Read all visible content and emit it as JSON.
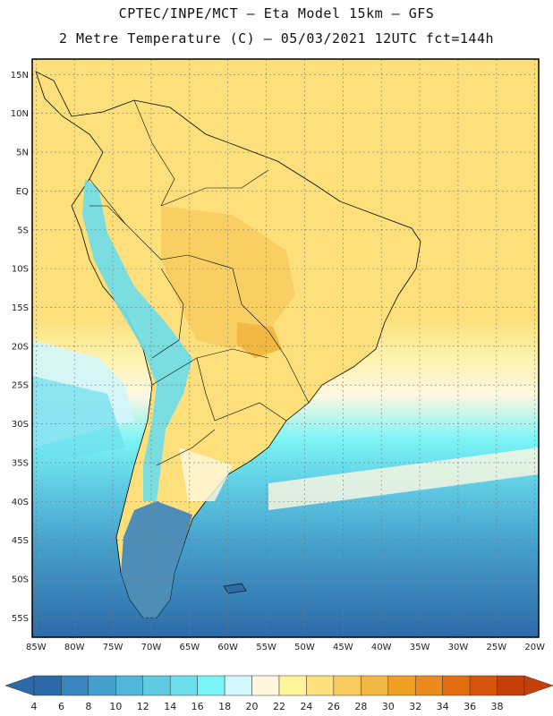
{
  "header": {
    "line1": "CPTEC/INPE/MCT –  Eta Model 15km – GFS",
    "line2": "2 Metre Temperature (C) – 05/03/2021 12UTC fct=144h"
  },
  "axes": {
    "lat_labels": [
      "15N",
      "10N",
      "5N",
      "EQ",
      "5S",
      "10S",
      "15S",
      "20S",
      "25S",
      "30S",
      "35S",
      "40S",
      "45S",
      "50S",
      "55S"
    ],
    "lat_values": [
      15,
      10,
      5,
      0,
      -5,
      -10,
      -15,
      -20,
      -25,
      -30,
      -35,
      -40,
      -45,
      -50,
      -55
    ],
    "lon_labels": [
      "85W",
      "80W",
      "75W",
      "70W",
      "65W",
      "60W",
      "55W",
      "50W",
      "45W",
      "40W",
      "35W",
      "30W",
      "25W",
      "20W"
    ],
    "lon_values": [
      -85,
      -80,
      -75,
      -70,
      -65,
      -60,
      -55,
      -50,
      -45,
      -40,
      -35,
      -30,
      -25,
      -20
    ],
    "lat_range": [
      -57.5,
      17.0
    ],
    "lon_range": [
      -85.5,
      -19.5
    ]
  },
  "colorbar": {
    "labels": [
      "4",
      "6",
      "8",
      "10",
      "12",
      "14",
      "16",
      "18",
      "20",
      "22",
      "24",
      "26",
      "28",
      "30",
      "32",
      "34",
      "36",
      "38"
    ],
    "colors": [
      "#2d6aa8",
      "#3a84bd",
      "#46a0cc",
      "#52b6d8",
      "#5fcbe3",
      "#6cdeec",
      "#7af4f6",
      "#d2f6fb",
      "#fff7e0",
      "#fef59a",
      "#fde07c",
      "#f8cb5e",
      "#f2b844",
      "#f0a024",
      "#ec8a1e",
      "#e36e12",
      "#d4560c",
      "#c44008"
    ]
  },
  "colors": {
    "ocean_warm": "#fde07c",
    "ocean_mid": "#fff7e0",
    "ocean_cool": "#5fcbe3",
    "ocean_cold": "#3a84bd",
    "land_hot": "#f2b844",
    "border": "#000000"
  }
}
